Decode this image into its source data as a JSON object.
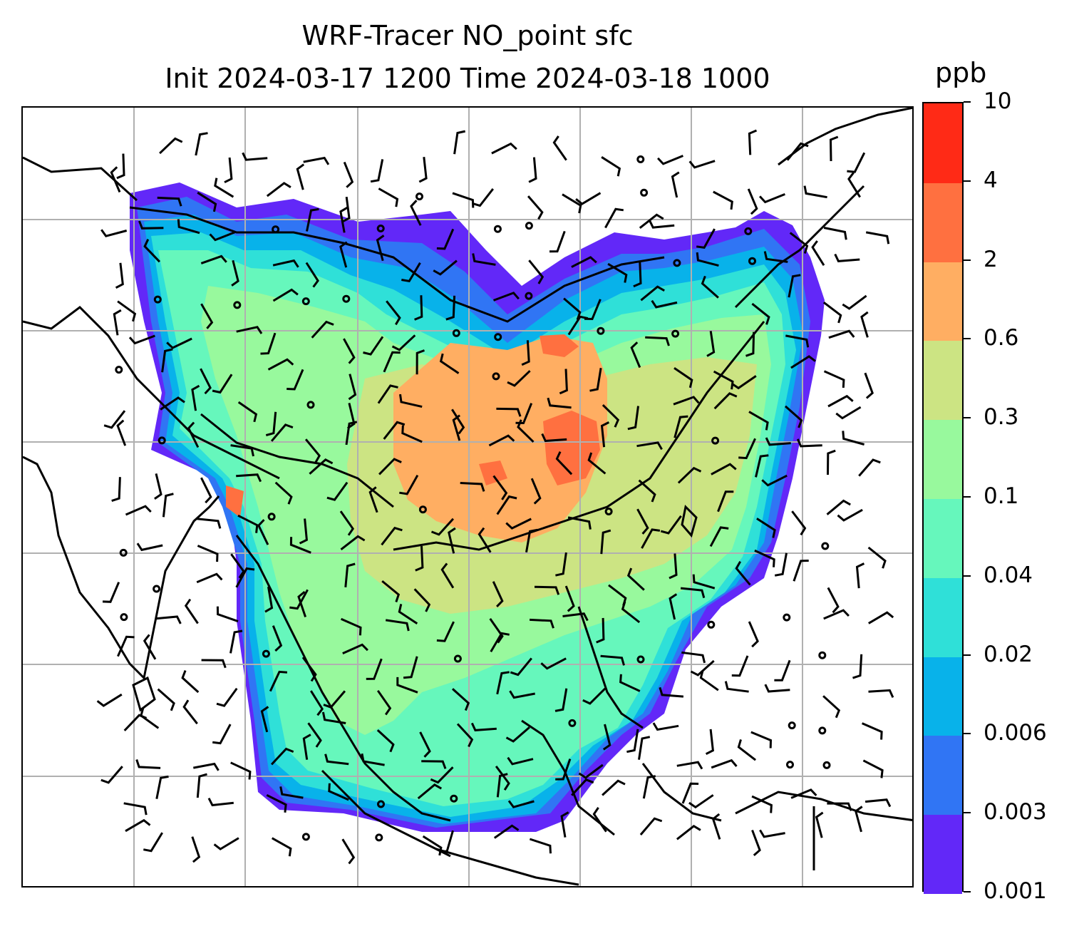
{
  "title": {
    "line1": "WRF-Tracer NO_point sfc",
    "line2": "Init 2024-03-17 1200 Time 2024-03-18 1000"
  },
  "colorbar": {
    "unit": "ppb",
    "levels": [
      "0.001",
      "0.003",
      "0.006",
      "0.02",
      "0.04",
      "0.1",
      "0.3",
      "0.6",
      "2",
      "4",
      "10"
    ],
    "colors": [
      "#6228f8",
      "#3075f4",
      "#08b2ea",
      "#2fe0d8",
      "#66f7bc",
      "#98f99d",
      "#cce483",
      "#ffae62",
      "#ff7040",
      "#ff2a16"
    ]
  },
  "map": {
    "type": "filled-contour tracer concentration map with wind barbs",
    "grid": true,
    "coastlines": true,
    "wind_barbs": true,
    "field_colors_present": [
      "#6228f8",
      "#3075f4",
      "#08b2ea",
      "#2fe0d8",
      "#66f7bc",
      "#98f99d",
      "#cce483",
      "#ffae62",
      "#ff7040"
    ]
  }
}
